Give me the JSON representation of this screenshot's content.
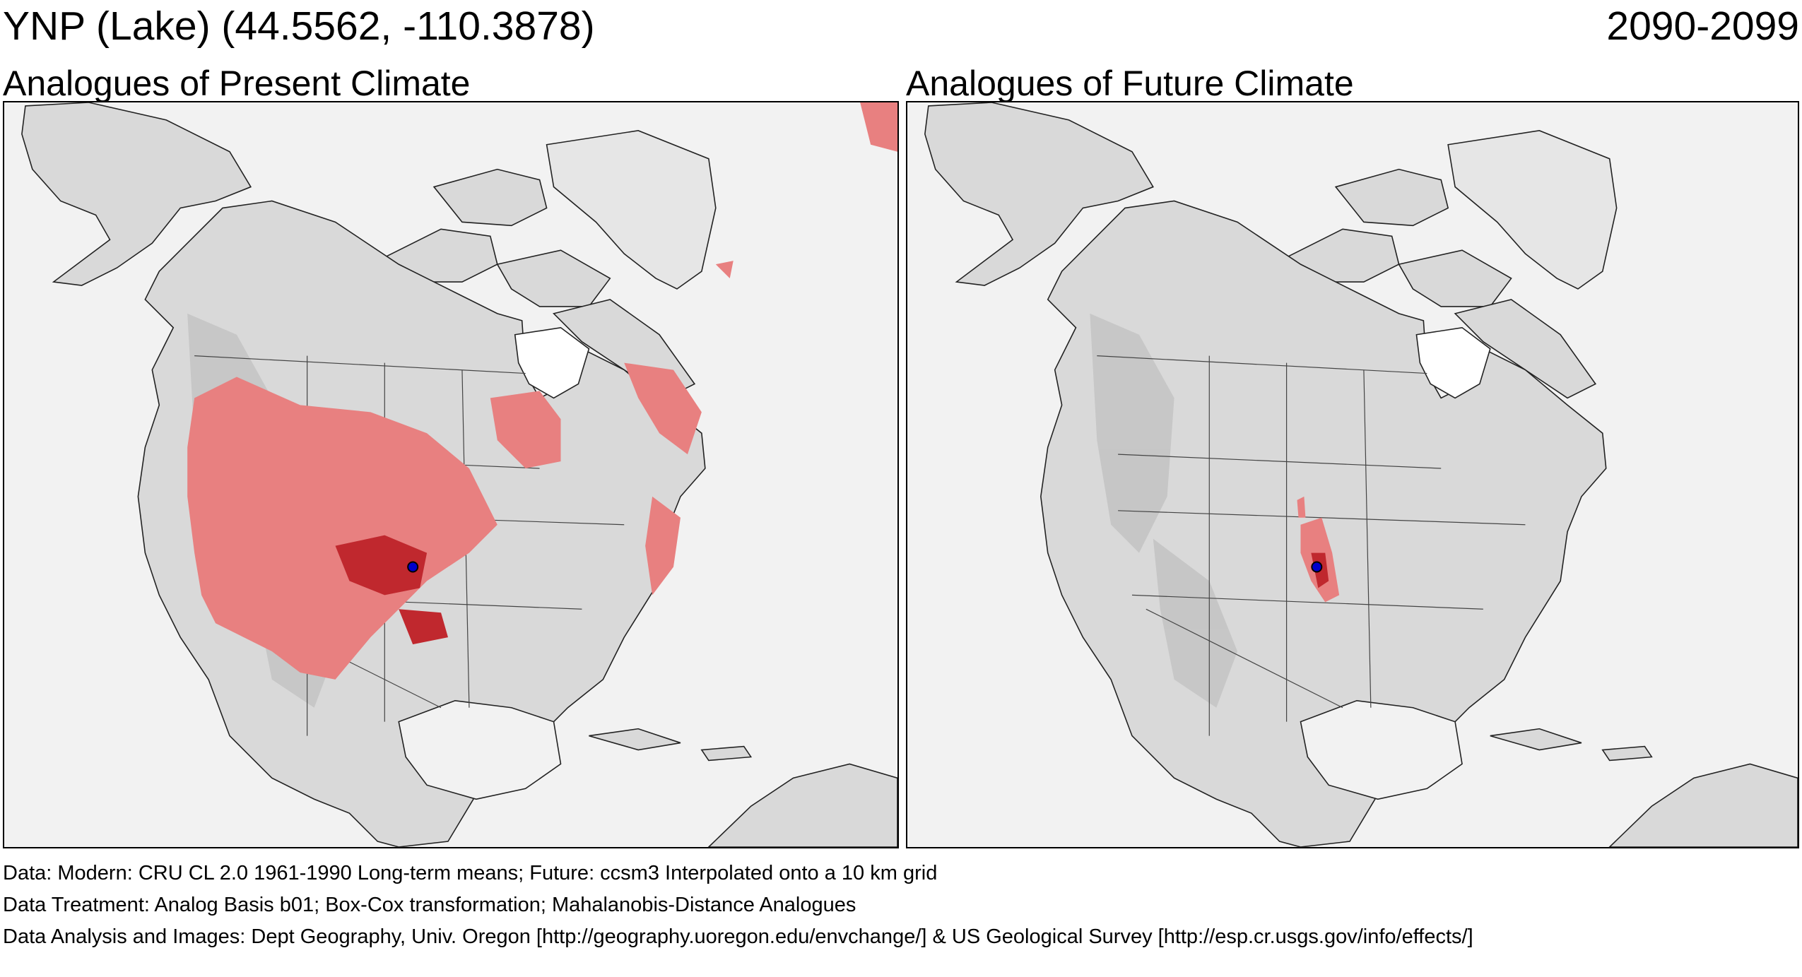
{
  "header": {
    "site": "YNP (Lake)  (44.5562, -110.3878)",
    "period": "2090-2099"
  },
  "panels": [
    {
      "title": "Analogues of Present Climate",
      "analog_level": "widespread"
    },
    {
      "title": "Analogues of Future Climate",
      "analog_level": "local"
    }
  ],
  "colors": {
    "background": "#f2f2f2",
    "land": "#d9d9d9",
    "land_dark": "#b8b8b8",
    "water": "#ffffff",
    "analog_light": "#e88080",
    "analog_dark": "#c0282e",
    "site_marker": "#0000cc"
  },
  "legend": {
    "site_marker_icon": "circle-dot",
    "analog_icon": "shaded-region"
  },
  "footer": {
    "data": "Data:  Modern: CRU CL 2.0 1961-1990 Long-term means; Future: ccsm3 Interpolated onto a 10 km grid",
    "treatment": "Data Treatment:  Analog Basis b01; Box-Cox transformation; Mahalanobis-Distance Analogues",
    "analysis": "Data Analysis and Images:  Dept Geography, Univ. Oregon [http://geography.uoregon.edu/envchange/] & US Geological Survey [http://esp.cr.usgs.gov/info/effects/]"
  }
}
